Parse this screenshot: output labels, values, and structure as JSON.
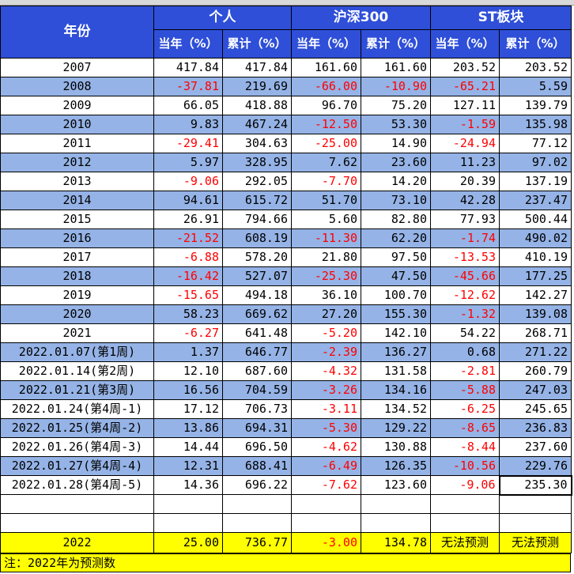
{
  "header": {
    "year_label": "年份",
    "groups": [
      "个人",
      "沪深300",
      "ST板块"
    ],
    "sub_labels": [
      "当年（%）",
      "累计（%）",
      "当年（%）",
      "累计（%）",
      "当年（%）",
      "累计（%）"
    ]
  },
  "rows": [
    {
      "label": "2007",
      "values": [
        "417.84",
        "417.84",
        "161.60",
        "161.60",
        "203.52",
        "203.52"
      ]
    },
    {
      "label": "2008",
      "values": [
        "-37.81",
        "219.69",
        "-66.00",
        "-10.90",
        "-65.21",
        "5.59"
      ]
    },
    {
      "label": "2009",
      "values": [
        "66.05",
        "418.88",
        "96.70",
        "75.20",
        "127.11",
        "139.79"
      ]
    },
    {
      "label": "2010",
      "values": [
        "9.83",
        "467.24",
        "-12.50",
        "53.30",
        "-1.59",
        "135.98"
      ]
    },
    {
      "label": "2011",
      "values": [
        "-29.41",
        "304.63",
        "-25.00",
        "14.90",
        "-24.94",
        "77.12"
      ]
    },
    {
      "label": "2012",
      "values": [
        "5.97",
        "328.95",
        "7.62",
        "23.60",
        "11.23",
        "97.02"
      ]
    },
    {
      "label": "2013",
      "values": [
        "-9.06",
        "292.05",
        "-7.70",
        "14.20",
        "20.39",
        "137.19"
      ]
    },
    {
      "label": "2014",
      "values": [
        "94.61",
        "615.72",
        "51.70",
        "73.10",
        "42.28",
        "237.47"
      ]
    },
    {
      "label": "2015",
      "values": [
        "26.91",
        "794.66",
        "5.60",
        "82.80",
        "77.93",
        "500.44"
      ]
    },
    {
      "label": "2016",
      "values": [
        "-21.52",
        "608.19",
        "-11.30",
        "62.20",
        "-1.74",
        "490.02"
      ]
    },
    {
      "label": "2017",
      "values": [
        "-6.88",
        "578.20",
        "21.80",
        "97.50",
        "-13.53",
        "410.19"
      ]
    },
    {
      "label": "2018",
      "values": [
        "-16.42",
        "527.07",
        "-25.30",
        "47.50",
        "-45.66",
        "177.25"
      ]
    },
    {
      "label": "2019",
      "values": [
        "-15.65",
        "494.18",
        "36.10",
        "100.70",
        "-12.62",
        "142.27"
      ]
    },
    {
      "label": "2020",
      "values": [
        "58.23",
        "669.62",
        "27.20",
        "155.30",
        "-1.32",
        "139.08"
      ]
    },
    {
      "label": "2021",
      "values": [
        "-6.27",
        "641.48",
        "-5.20",
        "142.10",
        "54.22",
        "268.71"
      ]
    },
    {
      "label": "2022.01.07(第1周)",
      "values": [
        "1.37",
        "646.77",
        "-2.39",
        "136.27",
        "0.68",
        "271.22"
      ]
    },
    {
      "label": "2022.01.14(第2周)",
      "values": [
        "12.10",
        "687.60",
        "-4.32",
        "131.58",
        "-2.81",
        "260.79"
      ]
    },
    {
      "label": "2022.01.21(第3周)",
      "values": [
        "16.56",
        "704.59",
        "-3.26",
        "134.16",
        "-5.88",
        "247.03"
      ]
    },
    {
      "label": "2022.01.24(第4周-1)",
      "values": [
        "17.12",
        "706.73",
        "-3.11",
        "134.52",
        "-6.25",
        "245.65"
      ]
    },
    {
      "label": "2022.01.25(第4周-2)",
      "values": [
        "13.86",
        "694.31",
        "-5.30",
        "129.22",
        "-8.65",
        "236.83"
      ]
    },
    {
      "label": "2022.01.26(第4周-3)",
      "values": [
        "14.44",
        "696.50",
        "-4.62",
        "130.88",
        "-8.44",
        "237.60"
      ]
    },
    {
      "label": "2022.01.27(第4周-4)",
      "values": [
        "12.31",
        "688.41",
        "-6.49",
        "126.35",
        "-10.56",
        "229.76"
      ]
    },
    {
      "label": "2022.01.28(第4周-5)",
      "values": [
        "14.36",
        "696.22",
        "-7.62",
        "123.60",
        "-9.06",
        "235.30"
      ]
    }
  ],
  "forecast": {
    "label": "2022",
    "values": [
      "25.00",
      "736.77",
      "-3.00",
      "134.78",
      "无法预测",
      "无法预测"
    ]
  },
  "note": "注：2022年为预测数",
  "colors": {
    "header_bg": "#2f4fd8",
    "band_blue": "#95b3e6",
    "negative": "#ff0000",
    "forecast_bg": "#ffff00"
  }
}
